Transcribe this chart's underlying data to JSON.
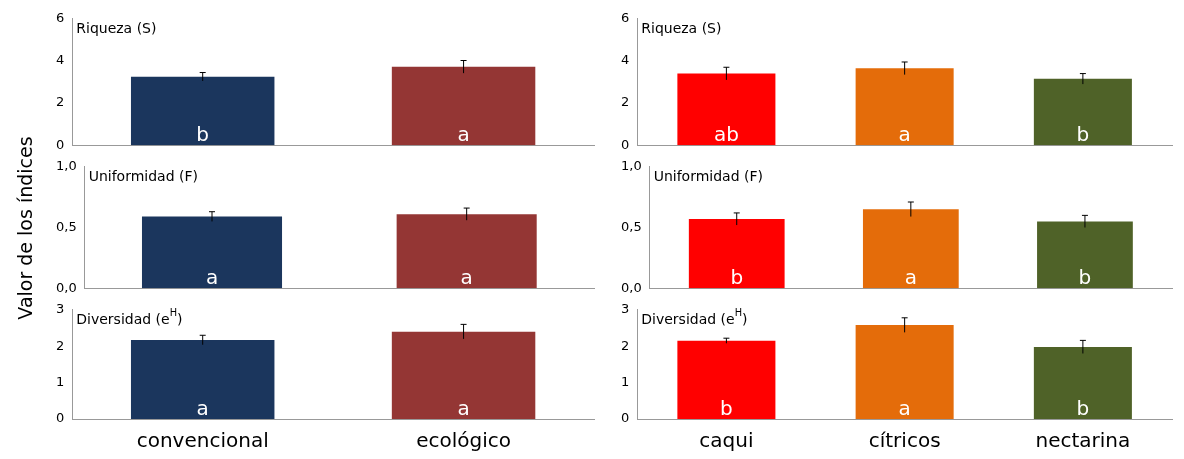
{
  "chart_data": [
    {
      "type": "bar",
      "title": "Riqueza (S)",
      "categories": [
        null,
        null
      ],
      "values": [
        3.25,
        3.72
      ],
      "colors": [
        "#1b365d",
        "#943634"
      ],
      "errors": [
        0.2,
        0.3
      ],
      "value_labels": [
        "b",
        "a"
      ],
      "ylim": [
        0,
        6
      ],
      "yticks": [
        0,
        2,
        4,
        6
      ],
      "tick_labels": "y"
    },
    {
      "type": "bar",
      "title": "Riqueza (S)",
      "categories": [
        null,
        null,
        null
      ],
      "values": [
        3.4,
        3.65,
        3.15
      ],
      "colors": [
        "#ff0000",
        "#e46c0a",
        "#4f6228"
      ],
      "errors": [
        0.3,
        0.3,
        0.25
      ],
      "value_labels": [
        "ab",
        "a",
        "b"
      ],
      "ylim": [
        0,
        6
      ],
      "yticks": [
        0,
        2,
        4,
        6
      ],
      "tick_labels": "y"
    },
    {
      "type": "bar",
      "title": "Uniformidad (F)",
      "ylabel": "Valor de los índices",
      "categories": [
        null,
        null
      ],
      "values": [
        0.59,
        0.61
      ],
      "colors": [
        "#1b365d",
        "#943634"
      ],
      "errors": [
        0.04,
        0.05
      ],
      "value_labels": [
        "a",
        "a"
      ],
      "ylim": [
        0,
        1
      ],
      "yticks": [
        {
          "value": 0,
          "label": "0,0"
        },
        {
          "value": 0.5,
          "label": "0,5"
        },
        {
          "value": 1,
          "label": "1,0"
        }
      ],
      "tick_labels": "y"
    },
    {
      "type": "bar",
      "title": "Uniformidad (F)",
      "categories": [
        null,
        null,
        null
      ],
      "values": [
        0.57,
        0.65,
        0.55
      ],
      "colors": [
        "#ff0000",
        "#e46c0a",
        "#4f6228"
      ],
      "errors": [
        0.05,
        0.06,
        0.05
      ],
      "value_labels": [
        "b",
        "a",
        "b"
      ],
      "ylim": [
        0,
        1
      ],
      "yticks": [
        {
          "value": 0,
          "label": "0,0"
        },
        {
          "value": 0.5,
          "label": "0,5"
        },
        {
          "value": 1,
          "label": "1,0"
        }
      ],
      "tick_labels": "y"
    },
    {
      "type": "bar",
      "title": "Diversidad (e$^{H}$)",
      "categories": [
        "convencional",
        "ecológico"
      ],
      "values": [
        2.17,
        2.4
      ],
      "colors": [
        "#1b365d",
        "#943634"
      ],
      "errors": [
        0.13,
        0.2
      ],
      "value_labels": [
        "a",
        "a"
      ],
      "ylim": [
        0,
        3
      ],
      "yticks": [
        0,
        1,
        2,
        3
      ]
    },
    {
      "type": "bar",
      "title": "Diversidad (e$^{H}$)",
      "categories": [
        "caqui",
        "cítricos",
        "nectarina"
      ],
      "values": [
        2.15,
        2.58,
        1.98
      ],
      "colors": [
        "#ff0000",
        "#e46c0a",
        "#4f6228"
      ],
      "errors": [
        0.07,
        0.2,
        0.18
      ],
      "value_labels": [
        "b",
        "a",
        "b"
      ],
      "ylim": [
        0,
        3
      ],
      "yticks": [
        0,
        1,
        2,
        3
      ]
    }
  ]
}
